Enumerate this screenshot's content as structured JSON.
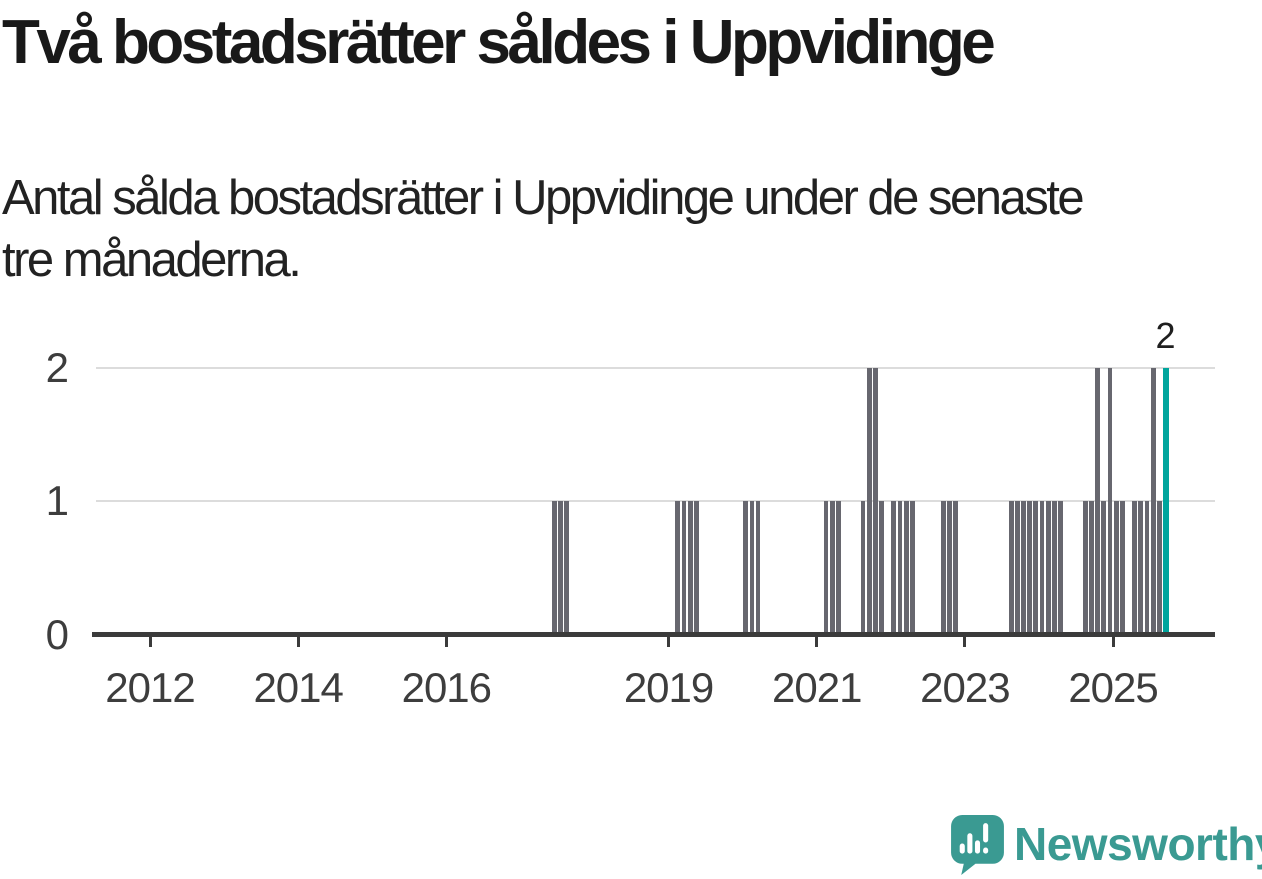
{
  "title": "Två bostadsrätter såldes i Uppvidinge",
  "subtitle": "Antal sålda bostadsrätter i Uppvidinge under de senaste\ntre månaderna.",
  "annotation": {
    "label": "2"
  },
  "logo": {
    "wordmark": "Newsworthy"
  },
  "colors": {
    "bar": "#67676F",
    "highlight": "#00A59D",
    "grid": "#dcdcdc",
    "axis": "#3b3b3b",
    "axis_text": "#3d3d3d",
    "title_text": "#191919",
    "logo": "#3A9A92",
    "background": "#ffffff"
  },
  "axes": {
    "y_ticks": [
      {
        "label": "0",
        "value": 0
      },
      {
        "label": "1",
        "value": 1
      },
      {
        "label": "2",
        "value": 2
      }
    ],
    "x_ticks": [
      {
        "label": "2012",
        "year": 2012
      },
      {
        "label": "2014",
        "year": 2014
      },
      {
        "label": "2016",
        "year": 2016
      },
      {
        "label": "2019",
        "year": 2019
      },
      {
        "label": "2021",
        "year": 2021
      },
      {
        "label": "2023",
        "year": 2023
      },
      {
        "label": "2025",
        "year": 2025
      }
    ]
  },
  "chart_data": {
    "type": "bar",
    "title": "Två bostadsrätter såldes i Uppvidinge",
    "subtitle": "Antal sålda bostadsrätter i Uppvidinge under de senaste tre månaderna.",
    "xlabel": "",
    "ylabel": "",
    "ylim": [
      0,
      2
    ],
    "x_domain": [
      "2011-04",
      "2026-05"
    ],
    "grid": "horizontal",
    "legend": "none",
    "highlight_month": "2025-09",
    "highlight_value_label": "2",
    "series": [
      {
        "month": "2017-06",
        "value": 1
      },
      {
        "month": "2017-07",
        "value": 1
      },
      {
        "month": "2017-08",
        "value": 1
      },
      {
        "month": "2019-02",
        "value": 1
      },
      {
        "month": "2019-03",
        "value": 1
      },
      {
        "month": "2019-04",
        "value": 1
      },
      {
        "month": "2019-05",
        "value": 1
      },
      {
        "month": "2020-01",
        "value": 1
      },
      {
        "month": "2020-02",
        "value": 1
      },
      {
        "month": "2020-03",
        "value": 1
      },
      {
        "month": "2021-02",
        "value": 1
      },
      {
        "month": "2021-03",
        "value": 1
      },
      {
        "month": "2021-04",
        "value": 1
      },
      {
        "month": "2021-08",
        "value": 1
      },
      {
        "month": "2021-09",
        "value": 2
      },
      {
        "month": "2021-10",
        "value": 2
      },
      {
        "month": "2021-11",
        "value": 1
      },
      {
        "month": "2022-01",
        "value": 1
      },
      {
        "month": "2022-02",
        "value": 1
      },
      {
        "month": "2022-03",
        "value": 1
      },
      {
        "month": "2022-04",
        "value": 1
      },
      {
        "month": "2022-09",
        "value": 1
      },
      {
        "month": "2022-10",
        "value": 1
      },
      {
        "month": "2022-11",
        "value": 1
      },
      {
        "month": "2023-08",
        "value": 1
      },
      {
        "month": "2023-09",
        "value": 1
      },
      {
        "month": "2023-10",
        "value": 1
      },
      {
        "month": "2023-11",
        "value": 1
      },
      {
        "month": "2023-12",
        "value": 1
      },
      {
        "month": "2024-01",
        "value": 1
      },
      {
        "month": "2024-02",
        "value": 1
      },
      {
        "month": "2024-03",
        "value": 1
      },
      {
        "month": "2024-04",
        "value": 1
      },
      {
        "month": "2024-08",
        "value": 1
      },
      {
        "month": "2024-09",
        "value": 1
      },
      {
        "month": "2024-10",
        "value": 2
      },
      {
        "month": "2024-11",
        "value": 1
      },
      {
        "month": "2024-12",
        "value": 2
      },
      {
        "month": "2025-01",
        "value": 1
      },
      {
        "month": "2025-02",
        "value": 1
      },
      {
        "month": "2025-04",
        "value": 1
      },
      {
        "month": "2025-05",
        "value": 1
      },
      {
        "month": "2025-06",
        "value": 1
      },
      {
        "month": "2025-07",
        "value": 2
      },
      {
        "month": "2025-08",
        "value": 1
      },
      {
        "month": "2025-09",
        "value": 2,
        "highlight": true
      }
    ]
  }
}
